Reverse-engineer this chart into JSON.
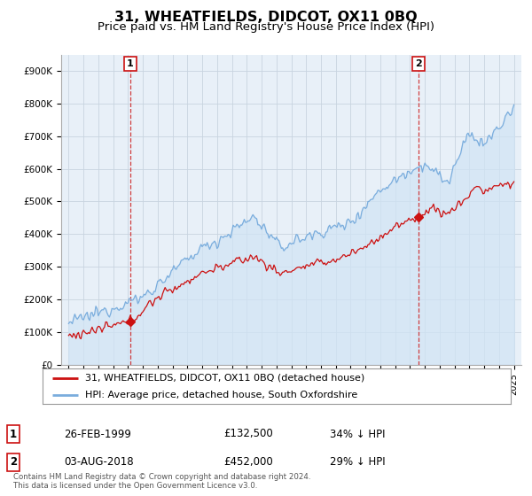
{
  "title": "31, WHEATFIELDS, DIDCOT, OX11 0BQ",
  "subtitle": "Price paid vs. HM Land Registry's House Price Index (HPI)",
  "title_fontsize": 11.5,
  "subtitle_fontsize": 9.5,
  "ylabel_ticks": [
    "£0",
    "£100K",
    "£200K",
    "£300K",
    "£400K",
    "£500K",
    "£600K",
    "£700K",
    "£800K",
    "£900K"
  ],
  "ytick_values": [
    0,
    100000,
    200000,
    300000,
    400000,
    500000,
    600000,
    700000,
    800000,
    900000
  ],
  "ylim": [
    0,
    950000
  ],
  "xlim_start": 1994.5,
  "xlim_end": 2025.5,
  "hpi_color": "#7aaddd",
  "hpi_fill_color": "#d0e4f5",
  "price_color": "#cc1111",
  "marker_color": "#cc1111",
  "annotation_box_color": "#cc1111",
  "legend_label_price": "31, WHEATFIELDS, DIDCOT, OX11 0BQ (detached house)",
  "legend_label_hpi": "HPI: Average price, detached house, South Oxfordshire",
  "sale1_label": "1",
  "sale1_date": "26-FEB-1999",
  "sale1_price": "£132,500",
  "sale1_hpi": "34% ↓ HPI",
  "sale1_x": 1999.15,
  "sale1_y": 132500,
  "sale2_label": "2",
  "sale2_date": "03-AUG-2018",
  "sale2_price": "£452,000",
  "sale2_hpi": "29% ↓ HPI",
  "sale2_x": 2018.58,
  "sale2_y": 452000,
  "footnote": "Contains HM Land Registry data © Crown copyright and database right 2024.\nThis data is licensed under the Open Government Licence v3.0.",
  "background_color": "#ffffff",
  "plot_bg_color": "#e8f0f8",
  "grid_color": "#c8d4e0"
}
